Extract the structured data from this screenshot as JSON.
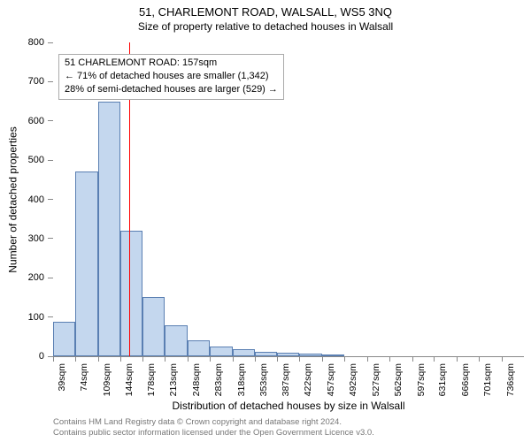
{
  "title": "51, CHARLEMONT ROAD, WALSALL, WS5 3NQ",
  "subtitle": "Size of property relative to detached houses in Walsall",
  "chart": {
    "type": "histogram",
    "ylabel": "Number of detached properties",
    "xlabel": "Distribution of detached houses by size in Walsall",
    "ylim": [
      0,
      800
    ],
    "ytick_step": 100,
    "ytick_fontsize": 11,
    "xtick_fontsize": 10.5,
    "label_fontsize": 12,
    "title_fontsize": 13,
    "subtitle_fontsize": 12,
    "bar_fill": "#c4d7ee",
    "bar_stroke": "#5a7fb2",
    "bar_stroke_width": 1,
    "background_color": "#ffffff",
    "grid_color": "#888888",
    "reference_line": {
      "x_sqm": 157,
      "color": "#ff0000",
      "width": 1.5
    },
    "annotation": {
      "lines": [
        "51 CHARLEMONT ROAD: 157sqm",
        "← 71% of detached houses are smaller (1,342)",
        "28% of semi-detached houses are larger (529) →"
      ],
      "border": "#aaaaaa",
      "bg": "#ffffff",
      "fontsize": 11
    },
    "bins": [
      {
        "label": "39sqm",
        "from": 39,
        "to": 74,
        "count": 88
      },
      {
        "label": "74sqm",
        "from": 74,
        "to": 109,
        "count": 470
      },
      {
        "label": "109sqm",
        "from": 109,
        "to": 144,
        "count": 650
      },
      {
        "label": "144sqm",
        "from": 144,
        "to": 178,
        "count": 320
      },
      {
        "label": "178sqm",
        "from": 178,
        "to": 213,
        "count": 150
      },
      {
        "label": "213sqm",
        "from": 213,
        "to": 248,
        "count": 80
      },
      {
        "label": "248sqm",
        "from": 248,
        "to": 283,
        "count": 40
      },
      {
        "label": "283sqm",
        "from": 283,
        "to": 318,
        "count": 25
      },
      {
        "label": "318sqm",
        "from": 318,
        "to": 353,
        "count": 18
      },
      {
        "label": "353sqm",
        "from": 353,
        "to": 387,
        "count": 12
      },
      {
        "label": "387sqm",
        "from": 387,
        "to": 422,
        "count": 10
      },
      {
        "label": "422sqm",
        "from": 422,
        "to": 457,
        "count": 7
      },
      {
        "label": "457sqm",
        "from": 457,
        "to": 492,
        "count": 5
      },
      {
        "label": "492sqm",
        "from": 492,
        "to": 527,
        "count": 0
      },
      {
        "label": "527sqm",
        "from": 527,
        "to": 562,
        "count": 0
      },
      {
        "label": "562sqm",
        "from": 562,
        "to": 597,
        "count": 0
      },
      {
        "label": "597sqm",
        "from": 597,
        "to": 631,
        "count": 0
      },
      {
        "label": "631sqm",
        "from": 631,
        "to": 666,
        "count": 0
      },
      {
        "label": "666sqm",
        "from": 666,
        "to": 701,
        "count": 0
      },
      {
        "label": "701sqm",
        "from": 701,
        "to": 736,
        "count": 0
      },
      {
        "label": "736sqm",
        "from": 736,
        "to": 771,
        "count": 0
      }
    ]
  },
  "footer": {
    "line1": "Contains HM Land Registry data © Crown copyright and database right 2024.",
    "line2": "Contains public sector information licensed under the Open Government Licence v3.0."
  }
}
